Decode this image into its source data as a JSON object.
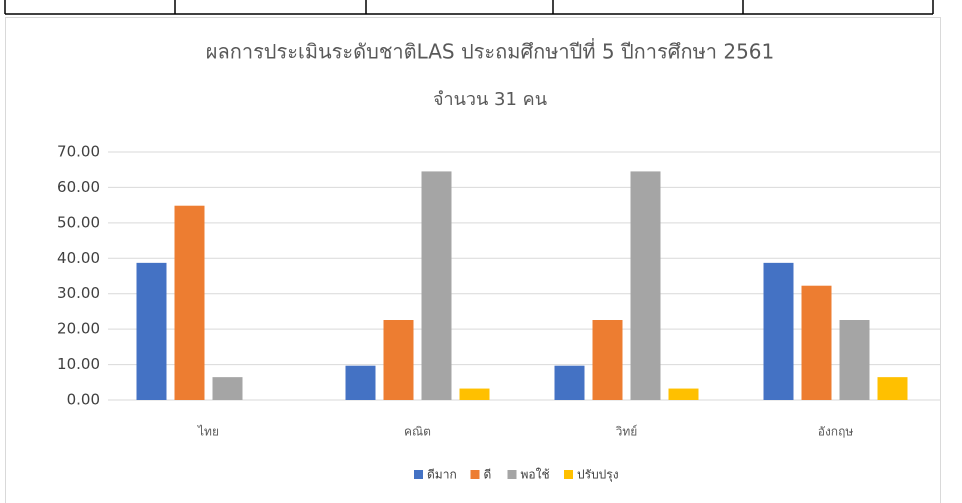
{
  "chart_data": {
    "type": "bar",
    "title": "ผลการประเมินระดับชาติLAS ประถมศึกษาปีที่ 5 ปีการศึกษา 2561",
    "subtitle": "จำนวน 31 คน",
    "categories": [
      "ไทย",
      "คณิต",
      "วิทย์",
      "อังกฤษ"
    ],
    "series": [
      {
        "name": "ดีมาก",
        "color": "#4472c4",
        "values": [
          38.71,
          9.68,
          9.68,
          38.71
        ]
      },
      {
        "name": "ดี",
        "color": "#ed7d31",
        "values": [
          54.84,
          22.58,
          22.58,
          32.26
        ]
      },
      {
        "name": "พอใช้",
        "color": "#a5a5a5",
        "values": [
          6.45,
          64.52,
          64.52,
          22.58
        ]
      },
      {
        "name": "ปรับปรุง",
        "color": "#ffc000",
        "values": [
          0,
          3.23,
          3.23,
          6.45
        ]
      }
    ],
    "ylim": [
      0,
      70
    ],
    "yticks": [
      {
        "value": 0,
        "label": "0.00"
      },
      {
        "value": 10,
        "label": "10.00"
      },
      {
        "value": 20,
        "label": "20.00"
      },
      {
        "value": 30,
        "label": "30.00"
      },
      {
        "value": 40,
        "label": "40.00"
      },
      {
        "value": 50,
        "label": "50.00"
      },
      {
        "value": 60,
        "label": "60.00"
      },
      {
        "value": 70,
        "label": "70.00"
      }
    ],
    "grid": true,
    "legend": "bottom"
  }
}
